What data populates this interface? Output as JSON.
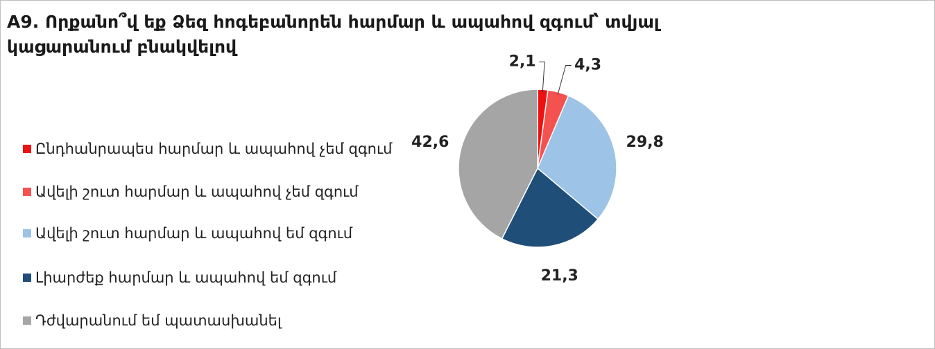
{
  "chart_data": {
    "type": "pie",
    "title": "A9. Որքանո՞վ եք Ձեզ հոգեբանորեն հարմար և ապահով զգում՝ տվյալ կացարանում բնակվելով",
    "categories": [
      "Ընդհանրապես հարմար և ապահով չեմ զգում",
      "Ավելի շուտ հարմար և ապահով չեմ զգում",
      "Ավելի շուտ հարմար և ապահով եմ զգում",
      "Լիարժեք հարմար և ապահով եմ զգում",
      "Դժվարանում եմ պատասխանել"
    ],
    "values": [
      2.1,
      4.3,
      29.8,
      21.3,
      42.6
    ],
    "value_labels": [
      "2,1",
      "4,3",
      "29,8",
      "21,3",
      "42,6"
    ],
    "colors": [
      "#ee1111",
      "#f4524f",
      "#9dc3e6",
      "#1f4e79",
      "#a5a5a5"
    ],
    "legend": "left"
  }
}
